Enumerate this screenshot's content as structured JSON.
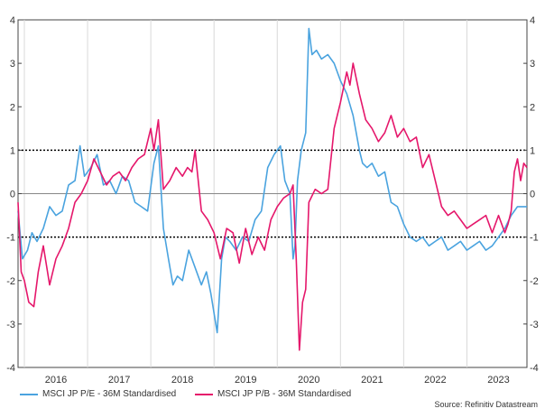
{
  "chart_data": {
    "type": "line",
    "title": "",
    "xlabel": "",
    "ylabel": "",
    "ylim": [
      -4,
      4
    ],
    "yticks": [
      4,
      3,
      2,
      1,
      0,
      -1,
      -2,
      -3,
      -4
    ],
    "xlim": [
      2015.4,
      2023.45
    ],
    "x_tick_labels": [
      {
        "label": "2016",
        "x": 2016.0
      },
      {
        "label": "2017",
        "x": 2017.0
      },
      {
        "label": "2018",
        "x": 2018.0
      },
      {
        "label": "2019",
        "x": 2019.0
      },
      {
        "label": "2020",
        "x": 2020.0
      },
      {
        "label": "2021",
        "x": 2021.0
      },
      {
        "label": "2022",
        "x": 2022.0
      },
      {
        "label": "2023",
        "x": 2023.0
      }
    ],
    "reference_lines": [
      {
        "y": 1,
        "style": "dotted",
        "color": "#000000"
      },
      {
        "y": -1,
        "style": "dotted",
        "color": "#000000"
      },
      {
        "y": 0,
        "style": "solid",
        "color": "#888888"
      }
    ],
    "grid": {
      "vertical": true,
      "horizontal": false
    },
    "legend_position": "bottom-left",
    "series": [
      {
        "name": "MSCI JP P/E - 36M Standardised",
        "color": "#4aa3df",
        "x": [
          2015.4,
          2015.47,
          2015.55,
          2015.62,
          2015.7,
          2015.8,
          2015.9,
          2016.0,
          2016.1,
          2016.2,
          2016.3,
          2016.38,
          2016.45,
          2016.55,
          2016.65,
          2016.75,
          2016.85,
          2016.95,
          2017.05,
          2017.15,
          2017.25,
          2017.35,
          2017.45,
          2017.55,
          2017.62,
          2017.7,
          2017.78,
          2017.85,
          2017.92,
          2018.0,
          2018.1,
          2018.2,
          2018.3,
          2018.38,
          2018.45,
          2018.55,
          2018.62,
          2018.68,
          2018.75,
          2018.85,
          2018.95,
          2019.05,
          2019.15,
          2019.25,
          2019.35,
          2019.45,
          2019.55,
          2019.62,
          2019.7,
          2019.75,
          2019.78,
          2019.82,
          2019.88,
          2019.95,
          2020.0,
          2020.05,
          2020.12,
          2020.2,
          2020.3,
          2020.4,
          2020.5,
          2020.6,
          2020.7,
          2020.8,
          2020.85,
          2020.92,
          2021.0,
          2021.1,
          2021.2,
          2021.3,
          2021.4,
          2021.5,
          2021.6,
          2021.7,
          2021.8,
          2021.9,
          2022.0,
          2022.1,
          2022.2,
          2022.3,
          2022.4,
          2022.5,
          2022.6,
          2022.7,
          2022.8,
          2022.9,
          2023.0,
          2023.1,
          2023.2,
          2023.3,
          2023.45
        ],
        "values": [
          -0.4,
          -1.5,
          -1.3,
          -0.9,
          -1.1,
          -0.8,
          -0.3,
          -0.5,
          -0.4,
          0.2,
          0.3,
          1.1,
          0.4,
          0.6,
          0.9,
          0.2,
          0.3,
          0.0,
          0.4,
          0.3,
          -0.2,
          -0.3,
          -0.4,
          0.7,
          1.1,
          -0.8,
          -1.5,
          -2.1,
          -1.9,
          -2.0,
          -1.3,
          -1.7,
          -2.1,
          -1.8,
          -2.3,
          -3.2,
          -1.5,
          -1.0,
          -1.1,
          -1.3,
          -1.0,
          -1.1,
          -0.6,
          -0.4,
          0.6,
          0.9,
          1.1,
          0.3,
          0.0,
          -1.5,
          -1.2,
          0.3,
          1.0,
          1.4,
          3.8,
          3.2,
          3.3,
          3.1,
          3.2,
          3.0,
          2.6,
          2.3,
          1.8,
          1.0,
          0.7,
          0.6,
          0.7,
          0.4,
          0.5,
          -0.2,
          -0.3,
          -0.7,
          -1.0,
          -1.1,
          -1.0,
          -1.2,
          -1.1,
          -1.0,
          -1.3,
          -1.2,
          -1.1,
          -1.3,
          -1.2,
          -1.1,
          -1.3,
          -1.2,
          -1.0,
          -0.8,
          -0.5,
          -0.3,
          -0.3
        ]
      },
      {
        "name": "MSCI JP P/B - 36M Standardised",
        "color": "#e5176b",
        "x": [
          2015.4,
          2015.45,
          2015.5,
          2015.57,
          2015.65,
          2015.72,
          2015.8,
          2015.9,
          2016.0,
          2016.1,
          2016.2,
          2016.3,
          2016.4,
          2016.5,
          2016.6,
          2016.7,
          2016.8,
          2016.9,
          2017.0,
          2017.1,
          2017.2,
          2017.3,
          2017.4,
          2017.5,
          2017.55,
          2017.62,
          2017.7,
          2017.8,
          2017.9,
          2018.0,
          2018.08,
          2018.15,
          2018.2,
          2018.3,
          2018.4,
          2018.5,
          2018.6,
          2018.7,
          2018.8,
          2018.9,
          2019.0,
          2019.1,
          2019.2,
          2019.3,
          2019.4,
          2019.5,
          2019.6,
          2019.7,
          2019.75,
          2019.8,
          2019.85,
          2019.9,
          2019.95,
          2020.0,
          2020.1,
          2020.2,
          2020.3,
          2020.4,
          2020.5,
          2020.6,
          2020.65,
          2020.7,
          2020.8,
          2020.9,
          2021.0,
          2021.1,
          2021.2,
          2021.3,
          2021.4,
          2021.5,
          2021.6,
          2021.7,
          2021.8,
          2021.9,
          2022.0,
          2022.1,
          2022.2,
          2022.3,
          2022.4,
          2022.5,
          2022.6,
          2022.7,
          2022.8,
          2022.9,
          2023.0,
          2023.1,
          2023.15,
          2023.2,
          2023.25,
          2023.3,
          2023.35,
          2023.4,
          2023.45
        ],
        "values": [
          -0.2,
          -1.8,
          -2.0,
          -2.5,
          -2.6,
          -1.8,
          -1.2,
          -2.1,
          -1.5,
          -1.2,
          -0.8,
          -0.2,
          0.0,
          0.3,
          0.8,
          0.5,
          0.2,
          0.4,
          0.5,
          0.3,
          0.6,
          0.8,
          0.9,
          1.5,
          1.0,
          1.7,
          0.1,
          0.3,
          0.6,
          0.4,
          0.6,
          0.5,
          1.0,
          -0.4,
          -0.6,
          -0.9,
          -1.5,
          -0.8,
          -0.9,
          -1.6,
          -0.8,
          -1.4,
          -1.0,
          -1.3,
          -0.6,
          -0.3,
          -0.1,
          0.0,
          0.2,
          -1.5,
          -3.6,
          -2.5,
          -2.2,
          -0.2,
          0.1,
          0.0,
          0.1,
          1.5,
          2.1,
          2.8,
          2.5,
          3.0,
          2.3,
          1.7,
          1.5,
          1.2,
          1.4,
          1.8,
          1.3,
          1.5,
          1.2,
          1.3,
          0.6,
          0.9,
          0.3,
          -0.3,
          -0.5,
          -0.4,
          -0.6,
          -0.8,
          -0.7,
          -0.6,
          -0.5,
          -0.9,
          -0.5,
          -0.9,
          -0.7,
          -0.4,
          0.5,
          0.8,
          0.3,
          0.7,
          0.6
        ]
      }
    ],
    "source": "Source: Refinitiv Datastream"
  }
}
